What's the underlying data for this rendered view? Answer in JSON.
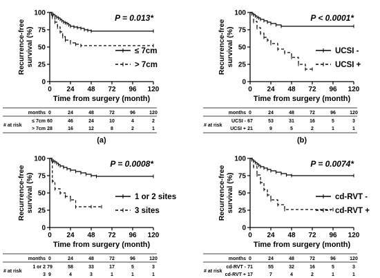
{
  "panels": [
    {
      "panel_label": "(a)",
      "p_value": "P = 0.013*",
      "ylabel_line1": "Recurrence-free",
      "ylabel_line2": "survival (%)",
      "xlabel": "Time from surgery (month)",
      "legend": [
        {
          "label": "≤ 7cm",
          "style": "solid"
        },
        {
          "label": "> 7cm",
          "style": "dashed"
        }
      ],
      "risk_table": {
        "header_label": "months",
        "side_label": "# at risk",
        "times": [
          "0",
          "24",
          "48",
          "72",
          "96",
          "120"
        ],
        "rows": [
          {
            "label": "≤ 7cm",
            "counts": [
              "60",
              "46",
              "24",
              "10",
              "4",
              "2"
            ]
          },
          {
            "label": "> 7cm",
            "counts": [
              "28",
              "16",
              "12",
              "8",
              "2",
              "1"
            ]
          }
        ]
      }
    },
    {
      "panel_label": "(b)",
      "p_value": "P < 0.0001*",
      "ylabel_line1": "Recurrence-free",
      "ylabel_line2": "survival (%)",
      "xlabel": "Time from surgery (month)",
      "legend": [
        {
          "label": "UCSI -",
          "style": "solid"
        },
        {
          "label": "UCSI +",
          "style": "dashed"
        }
      ],
      "risk_table": {
        "header_label": "months",
        "side_label": "# at risk",
        "times": [
          "0",
          "24",
          "48",
          "72",
          "96",
          "120"
        ],
        "rows": [
          {
            "label": "UCSI -",
            "counts": [
              "67",
              "53",
              "31",
              "16",
              "5",
              "3"
            ]
          },
          {
            "label": "UCSI +",
            "counts": [
              "21",
              "9",
              "5",
              "2",
              "1",
              "1"
            ]
          }
        ]
      }
    },
    {
      "panel_label": "(c)",
      "p_value": "P = 0.0008*",
      "ylabel_line1": "Recurrence-free",
      "ylabel_line2": "survival (%)",
      "xlabel": "Time from surgery (month)",
      "legend": [
        {
          "label": "1 or 2 sites",
          "style": "solid"
        },
        {
          "label": "3 sites",
          "style": "dashed"
        }
      ],
      "risk_table": {
        "header_label": "months",
        "side_label": "# at risk",
        "times": [
          "0",
          "24",
          "48",
          "72",
          "96",
          "120"
        ],
        "rows": [
          {
            "label": "1 or 2",
            "counts": [
              "79",
              "58",
              "33",
              "17",
              "5",
              "3"
            ]
          },
          {
            "label": "3",
            "counts": [
              "9",
              "4",
              "3",
              "1",
              "1",
              "1"
            ]
          }
        ]
      }
    },
    {
      "panel_label": "(d)",
      "p_value": "P = 0.0074*",
      "ylabel_line1": "Recurrence-free",
      "ylabel_line2": "survival (%)",
      "xlabel": "Time from surgery (month)",
      "legend": [
        {
          "label": "cd-RVT -",
          "style": "solid"
        },
        {
          "label": "cd-RVT +",
          "style": "dashed"
        }
      ],
      "risk_table": {
        "header_label": "months",
        "side_label": "# at risk",
        "times": [
          "0",
          "24",
          "48",
          "72",
          "96",
          "120"
        ],
        "rows": [
          {
            "label": "cd-RVT -",
            "counts": [
              "71",
              "55",
              "32",
              "16",
              "5",
              "3"
            ]
          },
          {
            "label": "cd-RVT +",
            "counts": [
              "17",
              "7",
              "4",
              "2",
              "1",
              "1"
            ]
          }
        ]
      }
    }
  ],
  "chart_data": [
    {
      "type": "line",
      "xlim": [
        0,
        120
      ],
      "ylim": [
        0,
        100
      ],
      "xticks": [
        0,
        24,
        48,
        72,
        96,
        120
      ],
      "yticks": [
        0,
        25,
        50,
        75,
        100
      ],
      "series": [
        {
          "name": "≤ 7cm",
          "style": "solid",
          "x": [
            0,
            2,
            4,
            6,
            8,
            10,
            12,
            14,
            16,
            18,
            20,
            22,
            24,
            28,
            32,
            36,
            40,
            44,
            48,
            120
          ],
          "y": [
            100,
            98,
            97,
            95,
            93,
            92,
            90,
            88,
            86,
            85,
            84,
            82,
            80,
            79,
            78,
            77,
            75,
            74,
            73,
            73
          ]
        },
        {
          "name": "> 7cm",
          "style": "dashed",
          "x": [
            0,
            3,
            6,
            9,
            12,
            15,
            18,
            24,
            30,
            36,
            120
          ],
          "y": [
            100,
            93,
            86,
            79,
            72,
            65,
            60,
            56,
            54,
            52,
            52
          ]
        }
      ]
    },
    {
      "type": "line",
      "xlim": [
        0,
        120
      ],
      "ylim": [
        0,
        100
      ],
      "xticks": [
        0,
        24,
        48,
        72,
        96,
        120
      ],
      "yticks": [
        0,
        25,
        50,
        75,
        100
      ],
      "series": [
        {
          "name": "UCSI -",
          "style": "solid",
          "x": [
            0,
            2,
            4,
            6,
            8,
            10,
            12,
            16,
            20,
            24,
            30,
            36,
            120
          ],
          "y": [
            100,
            98,
            97,
            95,
            93,
            92,
            90,
            88,
            86,
            84,
            82,
            80,
            80
          ]
        },
        {
          "name": "UCSI +",
          "style": "dashed",
          "x": [
            0,
            4,
            8,
            12,
            16,
            20,
            24,
            32,
            40,
            48,
            56,
            64,
            72
          ],
          "y": [
            100,
            87,
            78,
            70,
            64,
            60,
            55,
            47,
            42,
            35,
            25,
            18,
            18
          ]
        }
      ]
    },
    {
      "type": "line",
      "xlim": [
        0,
        120
      ],
      "ylim": [
        0,
        100
      ],
      "xticks": [
        0,
        24,
        48,
        72,
        96,
        120
      ],
      "yticks": [
        0,
        25,
        50,
        75,
        100
      ],
      "series": [
        {
          "name": "1 or 2 sites",
          "style": "solid",
          "x": [
            0,
            2,
            4,
            6,
            8,
            10,
            12,
            16,
            20,
            24,
            30,
            36,
            42,
            48,
            54,
            120
          ],
          "y": [
            100,
            98,
            96,
            95,
            93,
            91,
            89,
            87,
            85,
            83,
            81,
            79,
            77,
            75,
            74,
            74
          ]
        },
        {
          "name": "3 sites",
          "style": "dashed",
          "x": [
            0,
            3,
            6,
            12,
            18,
            24,
            30,
            48,
            60
          ],
          "y": [
            100,
            67,
            56,
            50,
            45,
            40,
            30,
            30,
            30
          ]
        }
      ]
    },
    {
      "type": "line",
      "xlim": [
        0,
        120
      ],
      "ylim": [
        0,
        100
      ],
      "xticks": [
        0,
        24,
        48,
        72,
        96,
        120
      ],
      "yticks": [
        0,
        25,
        50,
        75,
        100
      ],
      "series": [
        {
          "name": "cd-RVT -",
          "style": "solid",
          "x": [
            0,
            2,
            4,
            6,
            8,
            10,
            12,
            16,
            20,
            24,
            30,
            36,
            42,
            48,
            120
          ],
          "y": [
            100,
            98,
            96,
            94,
            92,
            90,
            88,
            86,
            84,
            82,
            80,
            78,
            76,
            75,
            75
          ]
        },
        {
          "name": "cd-RVT +",
          "style": "dashed",
          "x": [
            0,
            4,
            8,
            12,
            16,
            20,
            24,
            32,
            40,
            96
          ],
          "y": [
            100,
            88,
            76,
            65,
            55,
            47,
            40,
            33,
            26,
            26
          ]
        }
      ]
    }
  ]
}
